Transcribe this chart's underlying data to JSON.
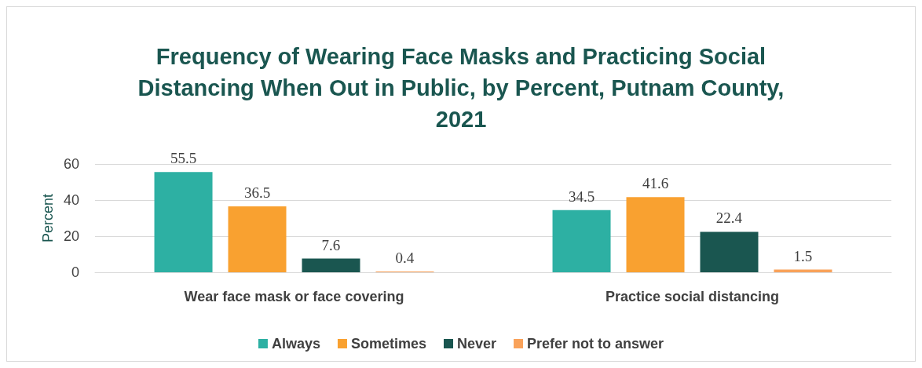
{
  "chart_data": {
    "type": "bar",
    "title": "Frequency of Wearing Face Masks and Practicing Social\nDistancing When Out in Public, by Percent, Putnam County,\n2021",
    "ylabel": "Percent",
    "categories": [
      "Wear face mask or face covering",
      "Practice social distancing"
    ],
    "series": [
      {
        "name": "Always",
        "color": "#2db0a3",
        "values": [
          55.5,
          34.5
        ]
      },
      {
        "name": "Sometimes",
        "color": "#f9a130",
        "values": [
          36.5,
          41.6
        ]
      },
      {
        "name": "Never",
        "color": "#1a5650",
        "values": [
          7.6,
          22.4
        ]
      },
      {
        "name": "Prefer not to answer",
        "color": "#f9a25a",
        "values": [
          0.4,
          1.5
        ]
      }
    ],
    "ylim": [
      0,
      60
    ],
    "yticks": [
      0,
      20,
      40,
      60
    ],
    "grid": "y",
    "legend": "bottom",
    "data_labels": true
  }
}
